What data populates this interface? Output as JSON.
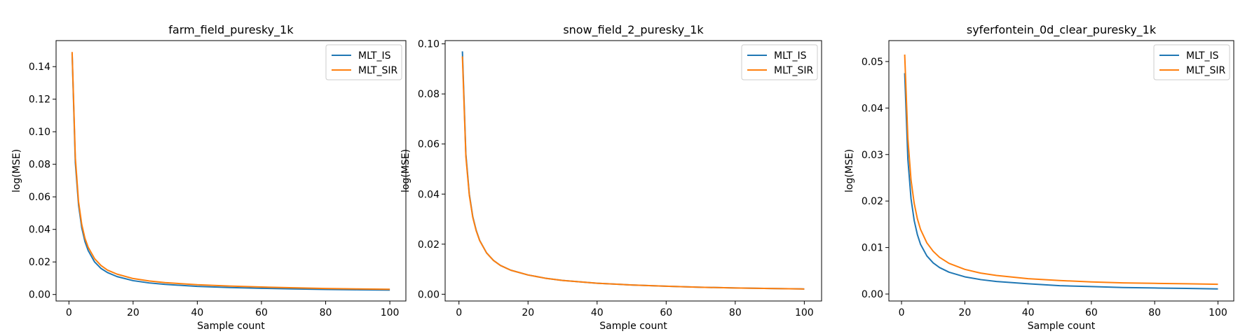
{
  "chart_data": [
    {
      "type": "line",
      "title": "farm_field_puresky_1k",
      "xlabel": "Sample count",
      "ylabel": "log(MSE)",
      "xlim": [
        -4,
        105
      ],
      "ylim": [
        -0.004,
        0.156
      ],
      "xticks": [
        0,
        20,
        40,
        60,
        80,
        100
      ],
      "xtick_labels": [
        "0",
        "20",
        "40",
        "60",
        "80",
        "100"
      ],
      "yticks": [
        0.0,
        0.02,
        0.04,
        0.06,
        0.08,
        0.1,
        0.12,
        0.14
      ],
      "ytick_labels": [
        "0.00",
        "0.02",
        "0.04",
        "0.06",
        "0.08",
        "0.10",
        "0.12",
        "0.14"
      ],
      "grid": false,
      "legend_position": "top-right",
      "x": [
        1,
        2,
        3,
        4,
        5,
        6,
        8,
        10,
        12,
        15,
        20,
        25,
        30,
        40,
        50,
        60,
        70,
        80,
        90,
        100
      ],
      "series": [
        {
          "name": "MLT_IS",
          "color": "#1f77b4",
          "values": [
            0.148,
            0.081,
            0.055,
            0.041,
            0.0325,
            0.027,
            0.02,
            0.016,
            0.0135,
            0.011,
            0.0085,
            0.0071,
            0.0062,
            0.005,
            0.0043,
            0.0038,
            0.0034,
            0.0031,
            0.0029,
            0.0027
          ]
        },
        {
          "name": "MLT_SIR",
          "color": "#ff7f0e",
          "values": [
            0.149,
            0.084,
            0.057,
            0.043,
            0.0345,
            0.029,
            0.022,
            0.0178,
            0.015,
            0.0125,
            0.0098,
            0.0083,
            0.0073,
            0.006,
            0.0052,
            0.0046,
            0.0041,
            0.0037,
            0.0034,
            0.0032
          ]
        }
      ]
    },
    {
      "type": "line",
      "title": "snow_field_2_puresky_1k",
      "xlabel": "Sample count",
      "ylabel": "log(MSE)",
      "xlim": [
        -4,
        105
      ],
      "ylim": [
        -0.0027,
        0.1013
      ],
      "xticks": [
        0,
        20,
        40,
        60,
        80,
        100
      ],
      "xtick_labels": [
        "0",
        "20",
        "40",
        "60",
        "80",
        "100"
      ],
      "yticks": [
        0.0,
        0.02,
        0.04,
        0.06,
        0.08,
        0.1
      ],
      "ytick_labels": [
        "0.00",
        "0.02",
        "0.04",
        "0.06",
        "0.08",
        "0.10"
      ],
      "grid": false,
      "legend_position": "top-right",
      "x": [
        1,
        2,
        3,
        4,
        5,
        6,
        8,
        10,
        12,
        15,
        20,
        25,
        30,
        40,
        50,
        60,
        70,
        80,
        90,
        100
      ],
      "series": [
        {
          "name": "MLT_IS",
          "color": "#1f77b4",
          "values": [
            0.097,
            0.056,
            0.04,
            0.031,
            0.0255,
            0.0215,
            0.0165,
            0.0135,
            0.0115,
            0.0096,
            0.0077,
            0.0064,
            0.0055,
            0.0044,
            0.0037,
            0.0032,
            0.0028,
            0.0025,
            0.0023,
            0.0021
          ]
        },
        {
          "name": "MLT_SIR",
          "color": "#ff7f0e",
          "values": [
            0.095,
            0.055,
            0.0395,
            0.0307,
            0.0253,
            0.0214,
            0.0165,
            0.0135,
            0.0115,
            0.0096,
            0.0077,
            0.0064,
            0.0055,
            0.0044,
            0.0037,
            0.0032,
            0.0028,
            0.0025,
            0.0023,
            0.0021
          ]
        }
      ]
    },
    {
      "type": "line",
      "title": "syferfontein_0d_clear_puresky_1k",
      "xlabel": "Sample count",
      "ylabel": "log(MSE)",
      "xlim": [
        -4,
        105
      ],
      "ylim": [
        -0.0015,
        0.0545
      ],
      "xticks": [
        0,
        20,
        40,
        60,
        80,
        100
      ],
      "xtick_labels": [
        "0",
        "20",
        "40",
        "60",
        "80",
        "100"
      ],
      "yticks": [
        0.0,
        0.01,
        0.02,
        0.03,
        0.04,
        0.05
      ],
      "ytick_labels": [
        "0.00",
        "0.01",
        "0.02",
        "0.03",
        "0.04",
        "0.05"
      ],
      "grid": false,
      "legend_position": "top-right",
      "x": [
        1,
        2,
        3,
        4,
        5,
        6,
        8,
        10,
        12,
        15,
        20,
        25,
        30,
        40,
        50,
        60,
        70,
        80,
        90,
        100
      ],
      "series": [
        {
          "name": "MLT_IS",
          "color": "#1f77b4",
          "values": [
            0.0475,
            0.029,
            0.0205,
            0.0158,
            0.0128,
            0.0107,
            0.0082,
            0.0067,
            0.0057,
            0.0047,
            0.0037,
            0.0031,
            0.0027,
            0.0022,
            0.0018,
            0.0016,
            0.0014,
            0.0013,
            0.0012,
            0.0011
          ]
        },
        {
          "name": "MLT_SIR",
          "color": "#ff7f0e",
          "values": [
            0.0515,
            0.0335,
            0.0245,
            0.0195,
            0.0162,
            0.0139,
            0.011,
            0.0092,
            0.0079,
            0.0066,
            0.0053,
            0.0045,
            0.004,
            0.0033,
            0.0029,
            0.0026,
            0.0024,
            0.0023,
            0.0022,
            0.0021
          ]
        }
      ]
    }
  ]
}
